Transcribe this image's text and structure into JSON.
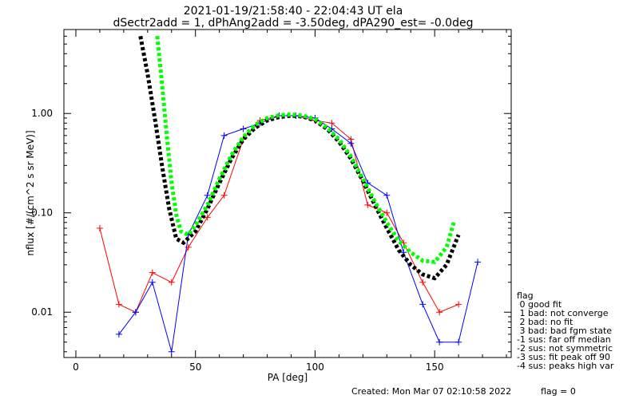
{
  "header": {
    "title_line1": "2021-01-19/21:58:40 - 22:04:43 UT ela",
    "title_line2": "dSectr2add = 1, dPhAng2add = -3.50deg, dPA290_est=  -0.0deg"
  },
  "legend": {
    "title": "flag",
    "items": [
      " 0 good fit",
      " 1 bad: not converge",
      " 2 bad: no fit",
      " 3 bad: bad fgm state",
      "-1 sus: far off median",
      "-2 sus: not symmetric",
      "-3 sus: fit peak off 90",
      "-4 sus: peaks high var"
    ]
  },
  "footer": {
    "created": "Created: Mon Mar 07 02:10:58 2022",
    "flag": "flag = 0"
  },
  "colors": {
    "series_a": "#ff0000",
    "series_b": "#0000ff",
    "fit_black": "#000000",
    "fit_green": "#00ff00"
  },
  "chart_data": {
    "type": "line",
    "title": "2021-01-19/21:58:40 - 22:04:43 UT ela",
    "subtitle": "dSectr2add = 1, dPhAng2add = -3.50deg, dPA290_est=  -0.0deg",
    "xlabel": "PA [deg]",
    "ylabel": "nflux [#/(cm^2 s sr MeV)]",
    "xlim": [
      -5,
      182
    ],
    "ylim": [
      0.0035,
      7.0
    ],
    "yscale": "log",
    "x_ticks": [
      0,
      50,
      100,
      150
    ],
    "x_tick_labels": [
      "0",
      "50",
      "100",
      "150"
    ],
    "y_ticks": [
      0.01,
      0.1,
      1.0
    ],
    "y_tick_labels": [
      "0.01",
      "0.10",
      "1.00"
    ],
    "grid": false,
    "legend_position": "right",
    "series": [
      {
        "color": "#ff0000",
        "marker": "+",
        "x": [
          10,
          18,
          25,
          32,
          40,
          47,
          55,
          62,
          70,
          77,
          85,
          92,
          100,
          107,
          115,
          122,
          130,
          137,
          145,
          152,
          160
        ],
        "y": [
          0.07,
          0.012,
          0.01,
          0.025,
          0.02,
          0.045,
          0.09,
          0.15,
          0.55,
          0.85,
          0.95,
          0.95,
          0.85,
          0.8,
          0.55,
          0.12,
          0.1,
          0.05,
          0.02,
          0.01,
          0.012
        ]
      },
      {
        "color": "#0000ff",
        "marker": "+",
        "x": [
          18,
          25,
          32,
          40,
          47,
          55,
          62,
          70,
          77,
          85,
          92,
          100,
          107,
          115,
          122,
          130,
          137,
          145,
          152,
          160,
          168
        ],
        "y": [
          0.006,
          0.01,
          0.02,
          0.004,
          0.06,
          0.15,
          0.6,
          0.7,
          0.8,
          0.95,
          0.95,
          0.9,
          0.7,
          0.5,
          0.2,
          0.15,
          0.04,
          0.012,
          0.005,
          0.005,
          0.032
        ]
      },
      {
        "color": "#000000",
        "x": [
          27,
          30,
          33,
          36,
          39,
          42,
          45,
          50,
          55,
          60,
          65,
          70,
          75,
          80,
          85,
          90,
          95,
          100,
          105,
          110,
          115,
          120,
          125,
          130,
          135,
          140,
          145,
          150,
          155,
          160
        ],
        "y": [
          6.0,
          2.5,
          0.9,
          0.3,
          0.11,
          0.055,
          0.05,
          0.065,
          0.11,
          0.2,
          0.35,
          0.55,
          0.72,
          0.85,
          0.92,
          0.95,
          0.93,
          0.85,
          0.7,
          0.52,
          0.35,
          0.21,
          0.12,
          0.07,
          0.042,
          0.03,
          0.024,
          0.022,
          0.03,
          0.06
        ]
      },
      {
        "color": "#00ff00",
        "x": [
          34,
          36,
          38,
          40,
          42,
          44,
          47,
          50,
          55,
          60,
          65,
          70,
          75,
          80,
          85,
          90,
          95,
          100,
          105,
          110,
          115,
          120,
          125,
          130,
          135,
          140,
          145,
          150,
          155,
          158
        ],
        "y": [
          6.0,
          2.0,
          0.6,
          0.2,
          0.095,
          0.065,
          0.06,
          0.075,
          0.12,
          0.22,
          0.38,
          0.58,
          0.77,
          0.9,
          0.96,
          0.98,
          0.95,
          0.88,
          0.72,
          0.55,
          0.37,
          0.22,
          0.13,
          0.08,
          0.052,
          0.04,
          0.033,
          0.032,
          0.045,
          0.08
        ]
      }
    ]
  }
}
